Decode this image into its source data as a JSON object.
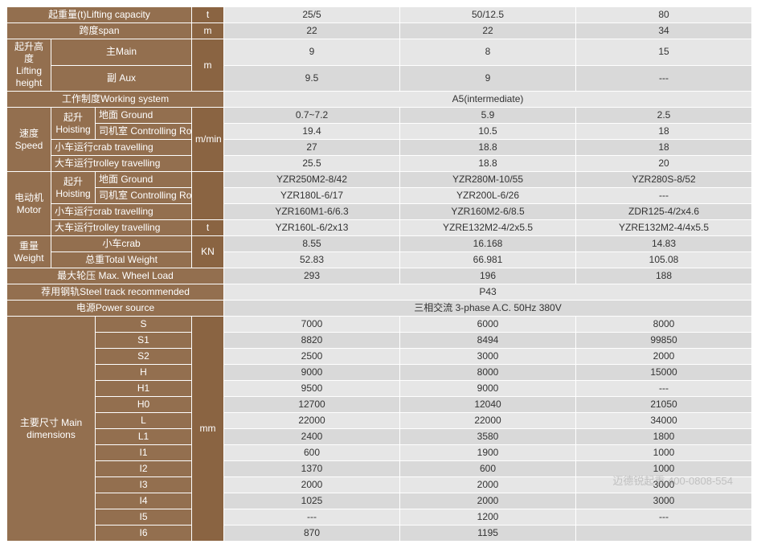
{
  "colors": {
    "header_bg": "#936f4f",
    "unit_bg": "#8a6442",
    "header_fg": "#ffffff",
    "data_even_bg": "#e6e6e6",
    "data_odd_bg": "#d9d9d9",
    "data_fg": "#333333",
    "border": "#ffffff"
  },
  "labels": {
    "lifting_capacity": "起重量(t)Lifting capacity",
    "span": "跨度span",
    "lifting_height": "起升高度\nLifting height",
    "main": "主Main",
    "aux": "副 Aux",
    "working_system": "工作制度Working system",
    "speed": "速度\nSpeed",
    "hoisting": "起升\nHoisting",
    "ground": "地面  Ground",
    "controlling_room": "司机室 Controlling Room",
    "crab_travelling": "小车运行crab travelling",
    "trolley_travelling": "大车运行trolley travelling",
    "motor": "电动机\nMotor",
    "weight": "重量\nWeight",
    "crab": "小车crab",
    "total_weight": "总重Total Weight",
    "max_wheel_load": "最大轮压    Max. Wheel Load",
    "steel_track": "荐用钢轨Steel track recommended",
    "power_source": "电源Power source",
    "main_dimensions": "主要尺寸\nMain dimensions"
  },
  "units": {
    "t": "t",
    "m": "m",
    "mmin": "m/min",
    "kn": "KN",
    "mm": "mm"
  },
  "cols": [
    "25/5",
    "50/12.5",
    "80"
  ],
  "span_row": [
    "22",
    "22",
    "34"
  ],
  "lift_main": [
    "9",
    "8",
    "15"
  ],
  "lift_aux": [
    "9.5",
    "9",
    "---"
  ],
  "working_system_val": "A5(intermediate)",
  "speed_hoist_ground": [
    "0.7~7.2",
    "5.9",
    "2.5"
  ],
  "speed_hoist_room": [
    "19.4",
    "10.5",
    "18"
  ],
  "speed_crab": [
    "27",
    "18.8",
    "18"
  ],
  "speed_trolley": [
    "25.5",
    "18.8",
    "20"
  ],
  "motor_hoist_ground": [
    "YZR250M2-8/42",
    "YZR280M-10/55",
    "YZR280S-8/52"
  ],
  "motor_hoist_room": [
    "YZR180L-6/17",
    "YZR200L-6/26",
    "---"
  ],
  "motor_crab": [
    "YZR160M1-6/6.3",
    "YZR160M2-6/8.5",
    "ZDR125-4/2x4.6"
  ],
  "motor_trolley": [
    "YZR160L-6/2x13",
    "YZRE132M2-4/2x5.5",
    "YZRE132M2-4/4x5.5"
  ],
  "weight_crab": [
    "8.55",
    "16.168",
    "14.83"
  ],
  "weight_total": [
    "52.83",
    "66.981",
    "105.08"
  ],
  "max_wheel": [
    "293",
    "196",
    "188"
  ],
  "steel_track_val": "P43",
  "power_source_val": "三相交流   3-phase A.C.  50Hz  380V",
  "dims": {
    "S": [
      "7000",
      "6000",
      "8000"
    ],
    "S1": [
      "8820",
      "8494",
      "99850"
    ],
    "S2": [
      "2500",
      "3000",
      "2000"
    ],
    "H": [
      "9000",
      "8000",
      "15000"
    ],
    "H1": [
      "9500",
      "9000",
      "---"
    ],
    "H0": [
      "12700",
      "12040",
      "21050"
    ],
    "L": [
      "22000",
      "22000",
      "34000"
    ],
    "L1": [
      "2400",
      "3580",
      "1800"
    ],
    "I1": [
      "600",
      "1900",
      "1000"
    ],
    "I2": [
      "1370",
      "600",
      "1000"
    ],
    "I3": [
      "2000",
      "2000",
      "3000"
    ],
    "I4": [
      "1025",
      "2000",
      "3000"
    ],
    "I5": [
      "---",
      "1200",
      "---"
    ],
    "I6": [
      "870",
      "1195",
      ""
    ]
  },
  "dim_order": [
    "S",
    "S1",
    "S2",
    "H",
    "H1",
    "H0",
    "L",
    "L1",
    "I1",
    "I2",
    "I3",
    "I4",
    "I5",
    "I6"
  ],
  "watermark": "迈德锐起重  400-0808-554"
}
